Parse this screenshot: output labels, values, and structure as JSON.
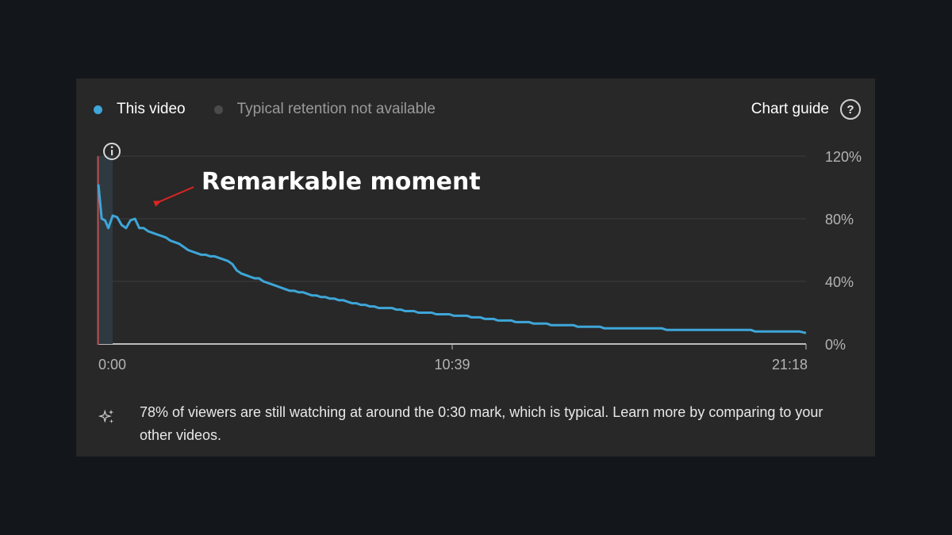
{
  "legend": {
    "items": [
      {
        "label": "This video",
        "color": "#3ea6d8"
      },
      {
        "label": "Typical retention not available",
        "color": "#4a4a4a"
      }
    ]
  },
  "chart_guide": {
    "label": "Chart guide",
    "icon": "help-circle-icon"
  },
  "annotation": {
    "text": "Remarkable moment",
    "arrow_color": "#e02424",
    "time_seconds": 30
  },
  "insight": {
    "icon": "sparkle-icon",
    "text": "78% of viewers are still watching at around the 0:30 mark, which is typical. Learn more by comparing to your other videos."
  },
  "chart_data": {
    "type": "line",
    "xlabel": "",
    "ylabel": "",
    "x_ticks": [
      {
        "label": "0:00",
        "seconds": 0
      },
      {
        "label": "10:39",
        "seconds": 639
      },
      {
        "label": "21:18",
        "seconds": 1278
      }
    ],
    "y_ticks": [
      "120%",
      "80%",
      "40%",
      "0%"
    ],
    "ylim": [
      0,
      120
    ],
    "xlim_seconds": [
      0,
      1278
    ],
    "grid": true,
    "series": [
      {
        "color": "#3ea6d8",
        "points": [
          [
            0,
            102
          ],
          [
            6,
            80
          ],
          [
            12,
            79
          ],
          [
            18,
            74
          ],
          [
            26,
            82
          ],
          [
            34,
            81
          ],
          [
            42,
            76
          ],
          [
            50,
            74
          ],
          [
            58,
            79
          ],
          [
            66,
            80
          ],
          [
            74,
            74
          ],
          [
            82,
            74
          ],
          [
            90,
            72
          ],
          [
            98,
            71
          ],
          [
            106,
            70
          ],
          [
            114,
            69
          ],
          [
            122,
            68
          ],
          [
            130,
            66
          ],
          [
            138,
            65
          ],
          [
            146,
            64
          ],
          [
            154,
            62
          ],
          [
            162,
            60
          ],
          [
            170,
            59
          ],
          [
            178,
            58
          ],
          [
            186,
            57
          ],
          [
            194,
            57
          ],
          [
            202,
            56
          ],
          [
            210,
            56
          ],
          [
            218,
            55
          ],
          [
            226,
            54
          ],
          [
            234,
            53
          ],
          [
            242,
            51
          ],
          [
            250,
            47
          ],
          [
            258,
            45
          ],
          [
            266,
            44
          ],
          [
            274,
            43
          ],
          [
            282,
            42
          ],
          [
            290,
            42
          ],
          [
            298,
            40
          ],
          [
            306,
            39
          ],
          [
            314,
            38
          ],
          [
            322,
            37
          ],
          [
            330,
            36
          ],
          [
            338,
            35
          ],
          [
            346,
            34
          ],
          [
            354,
            34
          ],
          [
            362,
            33
          ],
          [
            370,
            33
          ],
          [
            378,
            32
          ],
          [
            386,
            31
          ],
          [
            394,
            31
          ],
          [
            402,
            30
          ],
          [
            410,
            30
          ],
          [
            418,
            29
          ],
          [
            426,
            29
          ],
          [
            434,
            28
          ],
          [
            442,
            28
          ],
          [
            450,
            27
          ],
          [
            458,
            26
          ],
          [
            466,
            26
          ],
          [
            474,
            25
          ],
          [
            482,
            25
          ],
          [
            490,
            24
          ],
          [
            498,
            24
          ],
          [
            506,
            23
          ],
          [
            514,
            23
          ],
          [
            522,
            23
          ],
          [
            530,
            23
          ],
          [
            538,
            22
          ],
          [
            546,
            22
          ],
          [
            554,
            21
          ],
          [
            562,
            21
          ],
          [
            570,
            21
          ],
          [
            578,
            20
          ],
          [
            586,
            20
          ],
          [
            594,
            20
          ],
          [
            602,
            20
          ],
          [
            610,
            19
          ],
          [
            618,
            19
          ],
          [
            626,
            19
          ],
          [
            634,
            19
          ],
          [
            642,
            18
          ],
          [
            650,
            18
          ],
          [
            658,
            18
          ],
          [
            666,
            18
          ],
          [
            674,
            17
          ],
          [
            682,
            17
          ],
          [
            690,
            17
          ],
          [
            698,
            16
          ],
          [
            706,
            16
          ],
          [
            714,
            16
          ],
          [
            722,
            15
          ],
          [
            730,
            15
          ],
          [
            738,
            15
          ],
          [
            746,
            15
          ],
          [
            754,
            14
          ],
          [
            762,
            14
          ],
          [
            770,
            14
          ],
          [
            778,
            14
          ],
          [
            786,
            13
          ],
          [
            794,
            13
          ],
          [
            802,
            13
          ],
          [
            810,
            13
          ],
          [
            818,
            12
          ],
          [
            826,
            12
          ],
          [
            834,
            12
          ],
          [
            842,
            12
          ],
          [
            850,
            12
          ],
          [
            858,
            12
          ],
          [
            866,
            11
          ],
          [
            874,
            11
          ],
          [
            882,
            11
          ],
          [
            890,
            11
          ],
          [
            898,
            11
          ],
          [
            906,
            11
          ],
          [
            914,
            10
          ],
          [
            922,
            10
          ],
          [
            930,
            10
          ],
          [
            938,
            10
          ],
          [
            946,
            10
          ],
          [
            954,
            10
          ],
          [
            962,
            10
          ],
          [
            970,
            10
          ],
          [
            978,
            10
          ],
          [
            986,
            10
          ],
          [
            994,
            10
          ],
          [
            1002,
            10
          ],
          [
            1010,
            10
          ],
          [
            1018,
            10
          ],
          [
            1026,
            9
          ],
          [
            1034,
            9
          ],
          [
            1042,
            9
          ],
          [
            1050,
            9
          ],
          [
            1058,
            9
          ],
          [
            1066,
            9
          ],
          [
            1074,
            9
          ],
          [
            1082,
            9
          ],
          [
            1090,
            9
          ],
          [
            1098,
            9
          ],
          [
            1106,
            9
          ],
          [
            1114,
            9
          ],
          [
            1122,
            9
          ],
          [
            1130,
            9
          ],
          [
            1138,
            9
          ],
          [
            1146,
            9
          ],
          [
            1154,
            9
          ],
          [
            1162,
            9
          ],
          [
            1170,
            9
          ],
          [
            1178,
            9
          ],
          [
            1186,
            8
          ],
          [
            1194,
            8
          ],
          [
            1202,
            8
          ],
          [
            1210,
            8
          ],
          [
            1218,
            8
          ],
          [
            1226,
            8
          ],
          [
            1234,
            8
          ],
          [
            1242,
            8
          ],
          [
            1250,
            8
          ],
          [
            1258,
            8
          ],
          [
            1266,
            8
          ],
          [
            1278,
            7
          ]
        ]
      }
    ]
  }
}
